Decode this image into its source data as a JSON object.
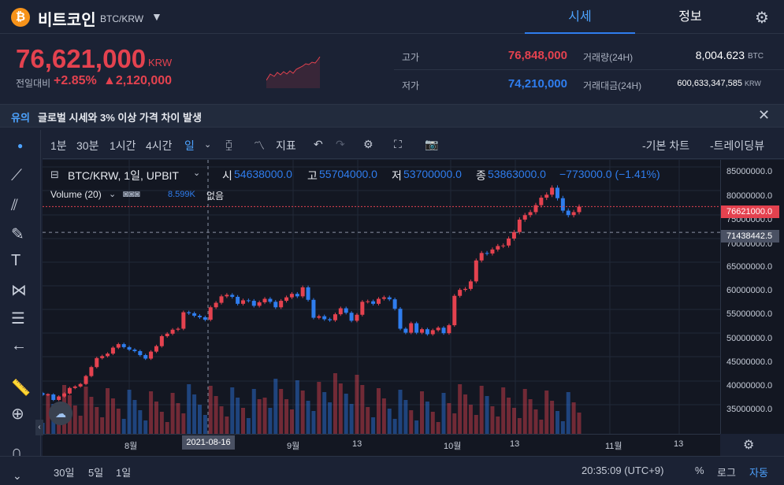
{
  "header": {
    "coin_name": "비트코인",
    "pair": "BTC/KRW",
    "tabs": [
      "시세",
      "정보"
    ]
  },
  "price": {
    "current": "76,621,000",
    "currency": "KRW",
    "change_label": "전일대비",
    "change_pct": "+2.85%",
    "change_amt": "▲2,120,000"
  },
  "stats": {
    "high_label": "고가",
    "high": "76,848,000",
    "low_label": "저가",
    "low": "74,210,000",
    "volume_label": "거래량(24H)",
    "volume": "8,004.623",
    "volume_unit": "BTC",
    "amount_label": "거래대금(24H)",
    "amount": "600,633,347,585",
    "amount_unit": "KRW"
  },
  "notice": {
    "tag": "유의",
    "text": "글로벌 시세와 3% 이상 가격 차이 발생"
  },
  "toolbar": {
    "intervals": [
      "1분",
      "30분",
      "1시간",
      "4시간",
      "일"
    ],
    "indicator": "지표",
    "basic_chart": "기본 차트",
    "tradingview": "트레이딩뷰"
  },
  "legend": {
    "title": "BTC/KRW, 1일, UPBIT",
    "o_lbl": "시",
    "o": "54638000.0",
    "h_lbl": "고",
    "h": "55704000.0",
    "l_lbl": "저",
    "l": "53700000.0",
    "c_lbl": "종",
    "c": "53863000.0",
    "chg": "−773000.0 (−1.41%)",
    "vol_title": "Volume (20)",
    "vol_val": "8.599K",
    "vol_none": "없음"
  },
  "chart_data": {
    "type": "candlestick",
    "yticks": [
      "85000000.0",
      "80000000.0",
      "75000000.0",
      "70000000.0",
      "65000000.0",
      "60000000.0",
      "55000000.0",
      "50000000.0",
      "45000000.0",
      "40000000.0",
      "35000000.0"
    ],
    "xticks": [
      "8월",
      "9월",
      "13",
      "10월",
      "13",
      "11월",
      "13"
    ],
    "current_price_label": "76621000.0",
    "crosshair_price": "71438442.5",
    "crosshair_date": "2021-08-16",
    "ylim": [
      31000000,
      86000000
    ],
    "closes": [
      38800000,
      38900000,
      37800000,
      38500000,
      39100000,
      40200000,
      40500000,
      41000000,
      42600000,
      44400000,
      46200000,
      46600000,
      47100000,
      48300000,
      49000000,
      48400000,
      47900000,
      47600000,
      46800000,
      46100000,
      47500000,
      48600000,
      50600000,
      51100000,
      51900000,
      52100000,
      55400000,
      55200000,
      54700000,
      54400000,
      53900000,
      56400000,
      57300000,
      58600000,
      58900000,
      58500000,
      57100000,
      57800000,
      57700000,
      56700000,
      57400000,
      58100000,
      57500000,
      56400000,
      57700000,
      58400000,
      59100000,
      58600000,
      60400000,
      57900000,
      54300000,
      54600000,
      54000000,
      53800000,
      55000000,
      56200000,
      55300000,
      53700000,
      54900000,
      57500000,
      57600000,
      57100000,
      58100000,
      58400000,
      58000000,
      56100000,
      52100000,
      51300000,
      53200000,
      51300000,
      52000000,
      51000000,
      51800000,
      52300000,
      51200000,
      52800000,
      58700000,
      59900000,
      60100000,
      61600000,
      65800000,
      67300000,
      67200000,
      68000000,
      68700000,
      68800000,
      70200000,
      71500000,
      74000000,
      74900000,
      75500000,
      76900000,
      78400000,
      79000000,
      80400000,
      78300000,
      75800000,
      74900000,
      75500000,
      76600000
    ],
    "volume_note": "volume histogram under price"
  },
  "bottom": {
    "ranges": [
      "30일",
      "5일",
      "1일"
    ],
    "time": "20:35:09 (UTC+9)",
    "pct": "%",
    "log": "로그",
    "auto": "자동"
  }
}
